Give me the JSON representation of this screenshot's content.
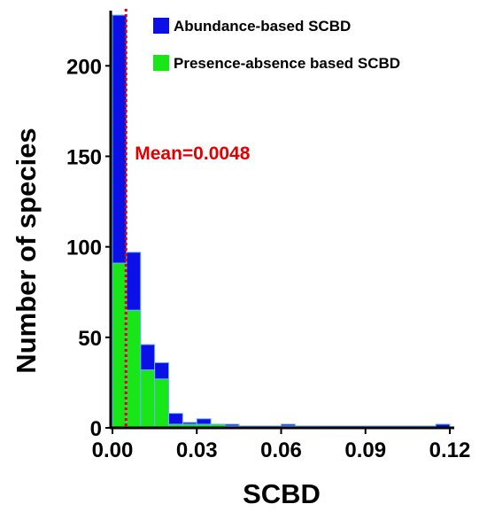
{
  "chart_data": {
    "type": "bar",
    "subtype": "overlaid-histogram",
    "xlabel": "SCBD",
    "ylabel": "Number of species",
    "xlim": [
      0,
      0.12
    ],
    "ylim": [
      0,
      230
    ],
    "x_ticks": [
      0.0,
      0.03,
      0.06,
      0.09,
      0.12
    ],
    "x_tick_labels": [
      "0.00",
      "0.03",
      "0.06",
      "0.09",
      "0.12"
    ],
    "y_ticks": [
      0,
      50,
      100,
      150,
      200
    ],
    "y_tick_labels": [
      "0",
      "50",
      "100",
      "150",
      "200"
    ],
    "bin_width": 0.005,
    "bin_starts": [
      0.0,
      0.005,
      0.01,
      0.015,
      0.02,
      0.025,
      0.03,
      0.035,
      0.04,
      0.045,
      0.05,
      0.055,
      0.06,
      0.065,
      0.07,
      0.075,
      0.08,
      0.085,
      0.09,
      0.095,
      0.1,
      0.105,
      0.11,
      0.115
    ],
    "series": [
      {
        "name": "Abundance-based SCBD",
        "color": "#0a10e6",
        "values": [
          228,
          97,
          46,
          36,
          8,
          3,
          5,
          1,
          2,
          1,
          1,
          1,
          2,
          1,
          1,
          1,
          1,
          1,
          1,
          1,
          1,
          1,
          1,
          2
        ]
      },
      {
        "name": "Presence-absence based SCBD",
        "color": "#19e619",
        "values": [
          91,
          65,
          32,
          27,
          2,
          2,
          2,
          2,
          1,
          1,
          1,
          1,
          1,
          1,
          1,
          0,
          0,
          0,
          1,
          1,
          1,
          1,
          1,
          0
        ]
      }
    ],
    "mean_line": {
      "x": 0.0048,
      "label": "Mean=0.0048",
      "color": "#e00000"
    },
    "legend_position": "top-right",
    "grid": false
  }
}
